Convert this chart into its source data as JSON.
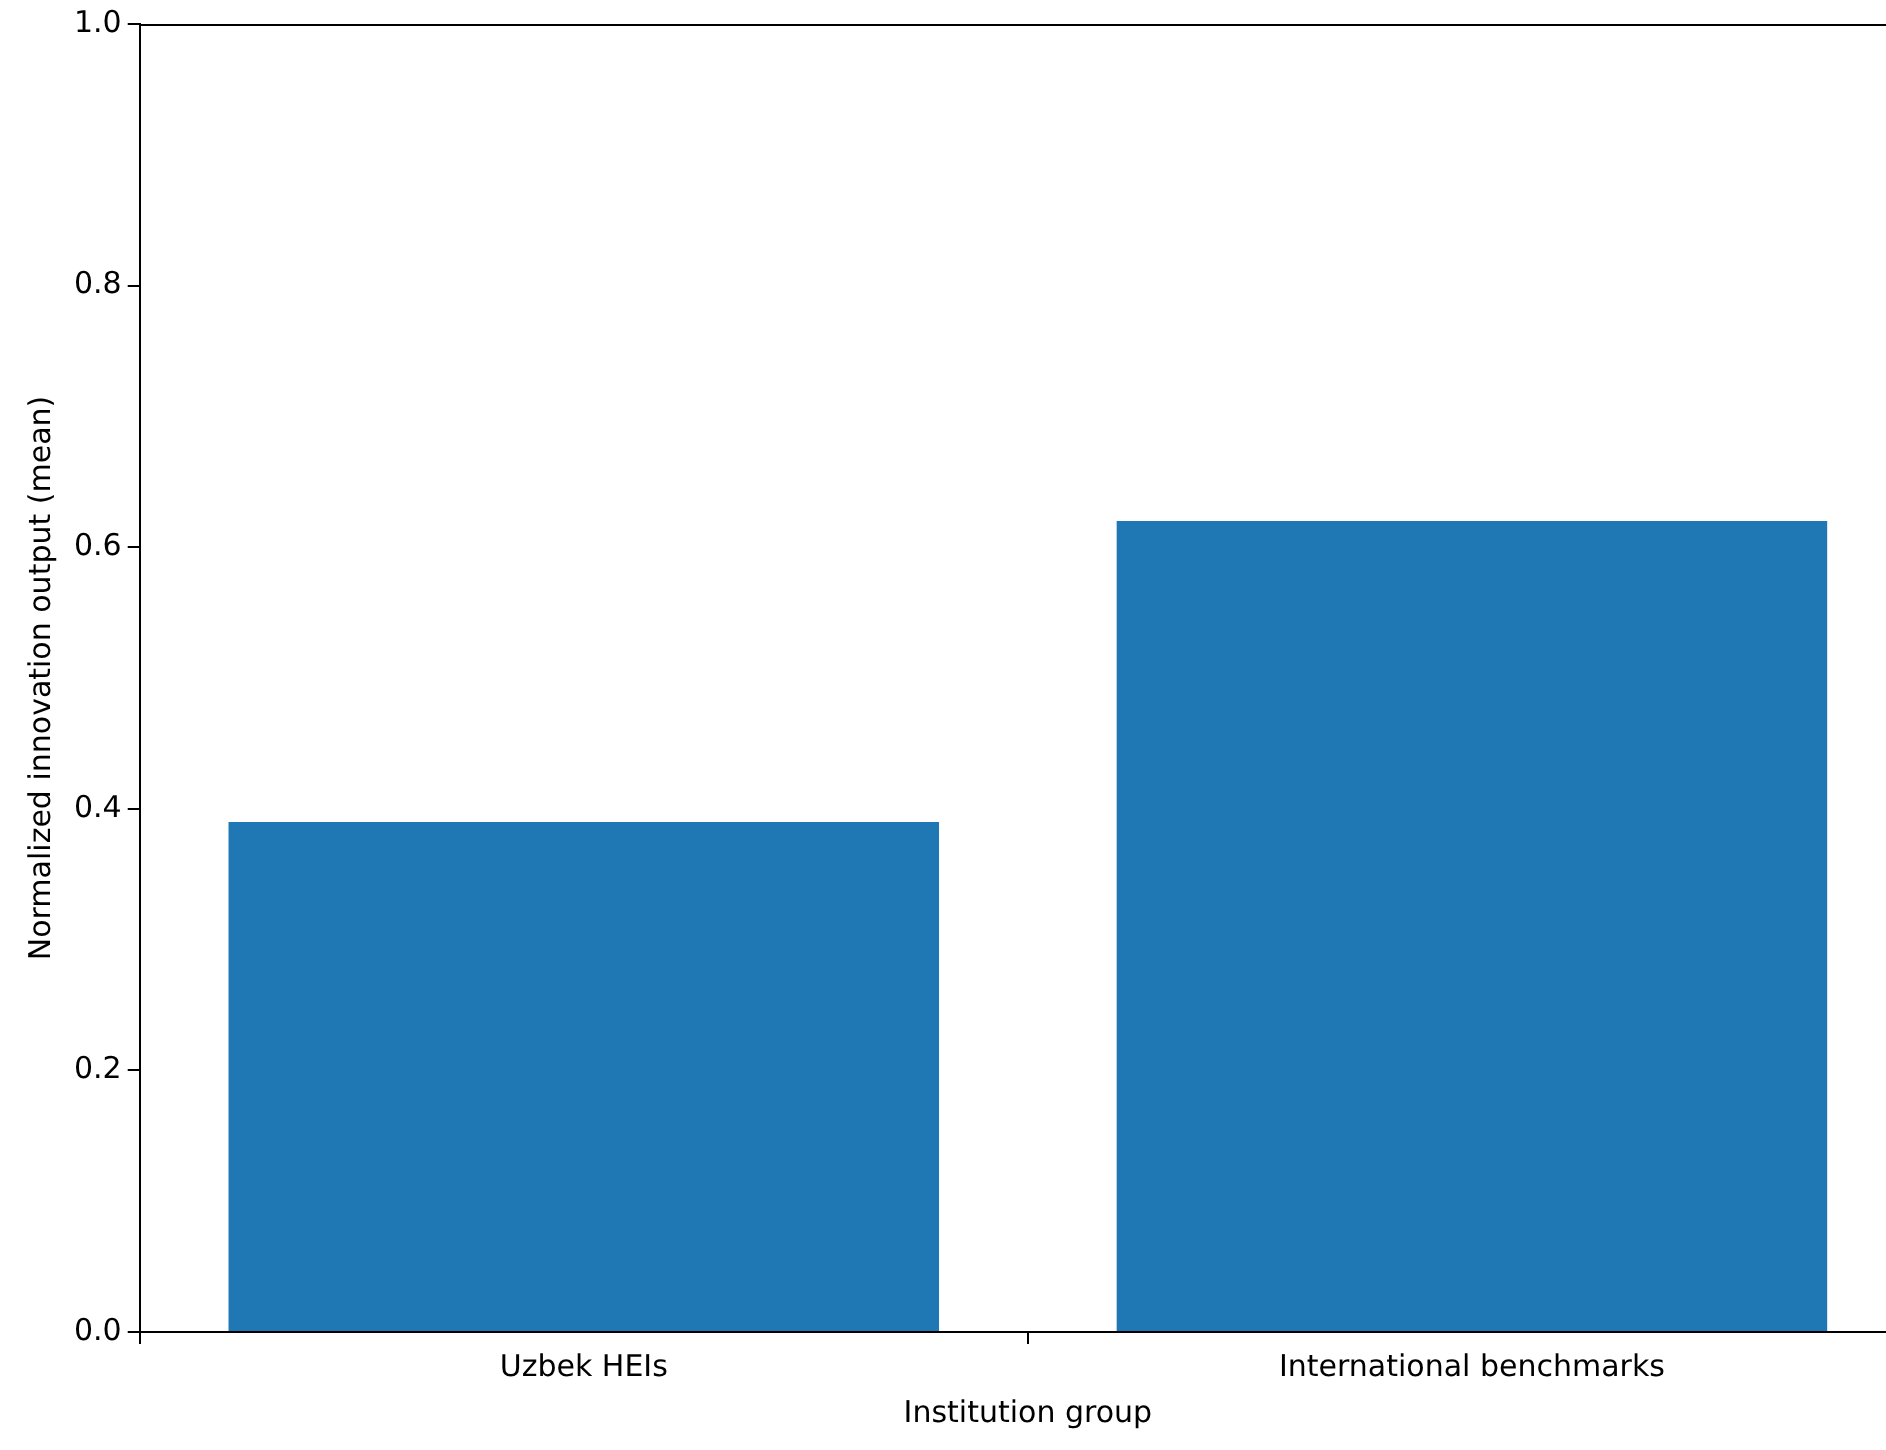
{
  "chart_data": {
    "type": "bar",
    "xlabel": "Institution group",
    "ylabel": "Normalized innovation output (mean)",
    "categories": [
      "Uzbek HEIs",
      "International benchmarks"
    ],
    "values": [
      0.39,
      0.62
    ],
    "color": "#1f77b4",
    "ylim": [
      0,
      1
    ],
    "yticks": [
      {
        "value": 0,
        "label": "0.0"
      },
      0.2,
      0.4,
      0.6,
      0.8,
      {
        "value": 1,
        "label": "1.0"
      }
    ],
    "grid": false,
    "legend": false
  }
}
